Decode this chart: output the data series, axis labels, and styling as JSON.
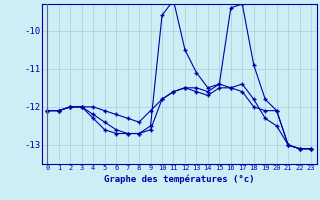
{
  "xlabel": "Graphe des températures (°c)",
  "background_color": "#cceef4",
  "grid_color": "#aad4dc",
  "line_color": "#0000aa",
  "hours": [
    0,
    1,
    2,
    3,
    4,
    5,
    6,
    7,
    8,
    9,
    10,
    11,
    12,
    13,
    14,
    15,
    16,
    17,
    18,
    19,
    20,
    21,
    22,
    23
  ],
  "line1": [
    -12.1,
    -12.1,
    -12.0,
    -12.0,
    -12.0,
    -12.1,
    -12.2,
    -12.3,
    -12.4,
    -12.1,
    -11.8,
    -11.6,
    -11.5,
    -11.6,
    -11.7,
    -11.5,
    -11.5,
    -11.6,
    -12.0,
    -12.1,
    -12.1,
    -13.0,
    -13.1,
    -13.1
  ],
  "line2": [
    -12.1,
    -12.1,
    -12.0,
    -12.0,
    -12.2,
    -12.4,
    -12.6,
    -12.7,
    -12.7,
    -12.6,
    -11.8,
    -11.6,
    -11.5,
    -11.5,
    -11.6,
    -11.4,
    -11.5,
    -11.4,
    -11.8,
    -12.3,
    -12.5,
    -13.0,
    -13.1,
    -13.1
  ],
  "line3": [
    -12.1,
    -12.1,
    -12.0,
    -12.0,
    -12.3,
    -12.6,
    -12.7,
    -12.7,
    -12.7,
    -12.5,
    -9.6,
    -9.2,
    -10.5,
    -11.1,
    -11.5,
    -11.4,
    -9.4,
    -9.3,
    -10.9,
    -11.8,
    -12.1,
    -13.0,
    -13.1,
    -13.1
  ],
  "xlim": [
    -0.5,
    23.5
  ],
  "ylim": [
    -13.5,
    -9.3
  ],
  "yticks": [
    -13,
    -12,
    -11,
    -10
  ],
  "xticks": [
    0,
    1,
    2,
    3,
    4,
    5,
    6,
    7,
    8,
    9,
    10,
    11,
    12,
    13,
    14,
    15,
    16,
    17,
    18,
    19,
    20,
    21,
    22,
    23
  ]
}
